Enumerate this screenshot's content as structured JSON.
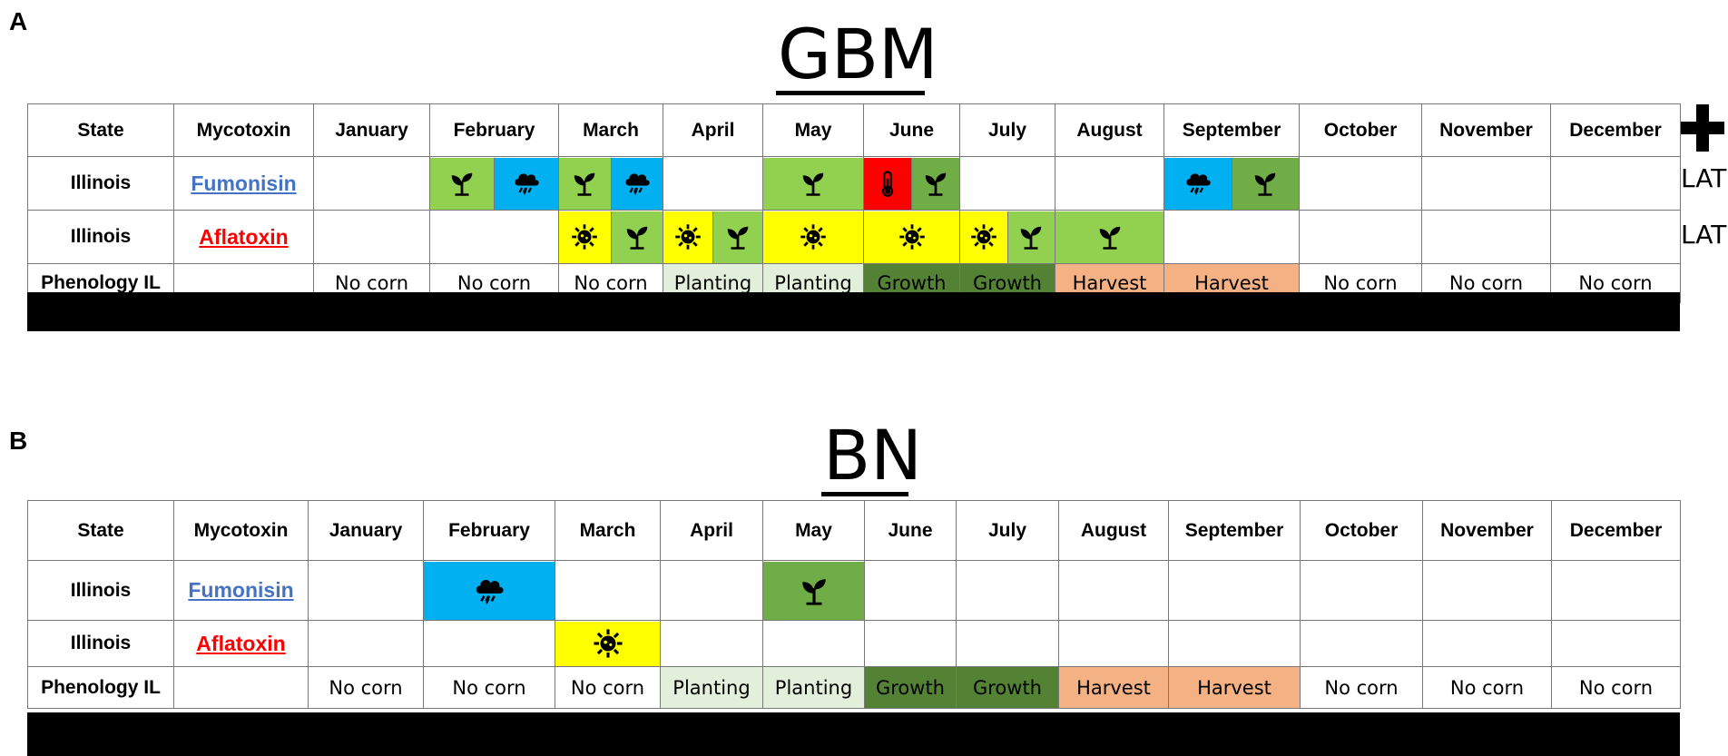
{
  "colors": {
    "plant_light": "#92d050",
    "plant_dark": "#70ad47",
    "rain": "#00b0f0",
    "heat": "#ff0000",
    "sun": "#ffff00",
    "planting_bg": "#e2efda",
    "growth_bg": "#548235",
    "harvest_bg": "#f4b183",
    "fumonisin": "#4472c4",
    "aflatoxin": "#ff0000"
  },
  "headers": [
    "State",
    "Mycotoxin",
    "January",
    "February",
    "March",
    "April",
    "May",
    "June",
    "July",
    "August",
    "September",
    "October",
    "November",
    "December"
  ],
  "phenology": [
    "No corn",
    "No corn",
    "No corn",
    "Planting",
    "Planting",
    "Growth",
    "Growth",
    "Harvest",
    "Harvest",
    "No corn",
    "No corn",
    "No corn"
  ],
  "panel_a": {
    "letter": "A",
    "title": "GBM",
    "legend_symbol": "+",
    "rows": [
      {
        "state": "Illinois",
        "mycotoxin": "Fumonisin",
        "lat_label": "LAT",
        "months": [
          [],
          [
            "plant_light",
            "rain"
          ],
          [
            "plant_light",
            "rain"
          ],
          [],
          [
            "plant_light"
          ],
          [
            "heat",
            "plant_dark"
          ],
          [],
          [],
          [
            "rain",
            "plant_dark"
          ],
          [],
          [],
          []
        ]
      },
      {
        "state": "Illinois",
        "mycotoxin": "Aflatoxin",
        "lat_label": "LAT",
        "months": [
          [],
          [],
          [
            "sun",
            "plant_light"
          ],
          [
            "sun",
            "plant_light"
          ],
          [
            "sun"
          ],
          [
            "sun"
          ],
          [
            "sun",
            "plant_light"
          ],
          [
            "plant_light"
          ],
          [],
          [],
          [],
          []
        ]
      }
    ],
    "phenology_label": "Phenology IL"
  },
  "panel_b": {
    "letter": "B",
    "title": "BN",
    "rows": [
      {
        "state": "Illinois",
        "mycotoxin": "Fumonisin",
        "months": [
          [],
          [
            "rain"
          ],
          [],
          [],
          [
            "plant_dark"
          ],
          [],
          [],
          [],
          [],
          [],
          [],
          []
        ]
      },
      {
        "state": "Illinois",
        "mycotoxin": "Aflatoxin",
        "months": [
          [],
          [],
          [
            "sun"
          ],
          [],
          [],
          [],
          [],
          [],
          [],
          [],
          [],
          []
        ]
      }
    ],
    "phenology_label": "Phenology IL"
  }
}
